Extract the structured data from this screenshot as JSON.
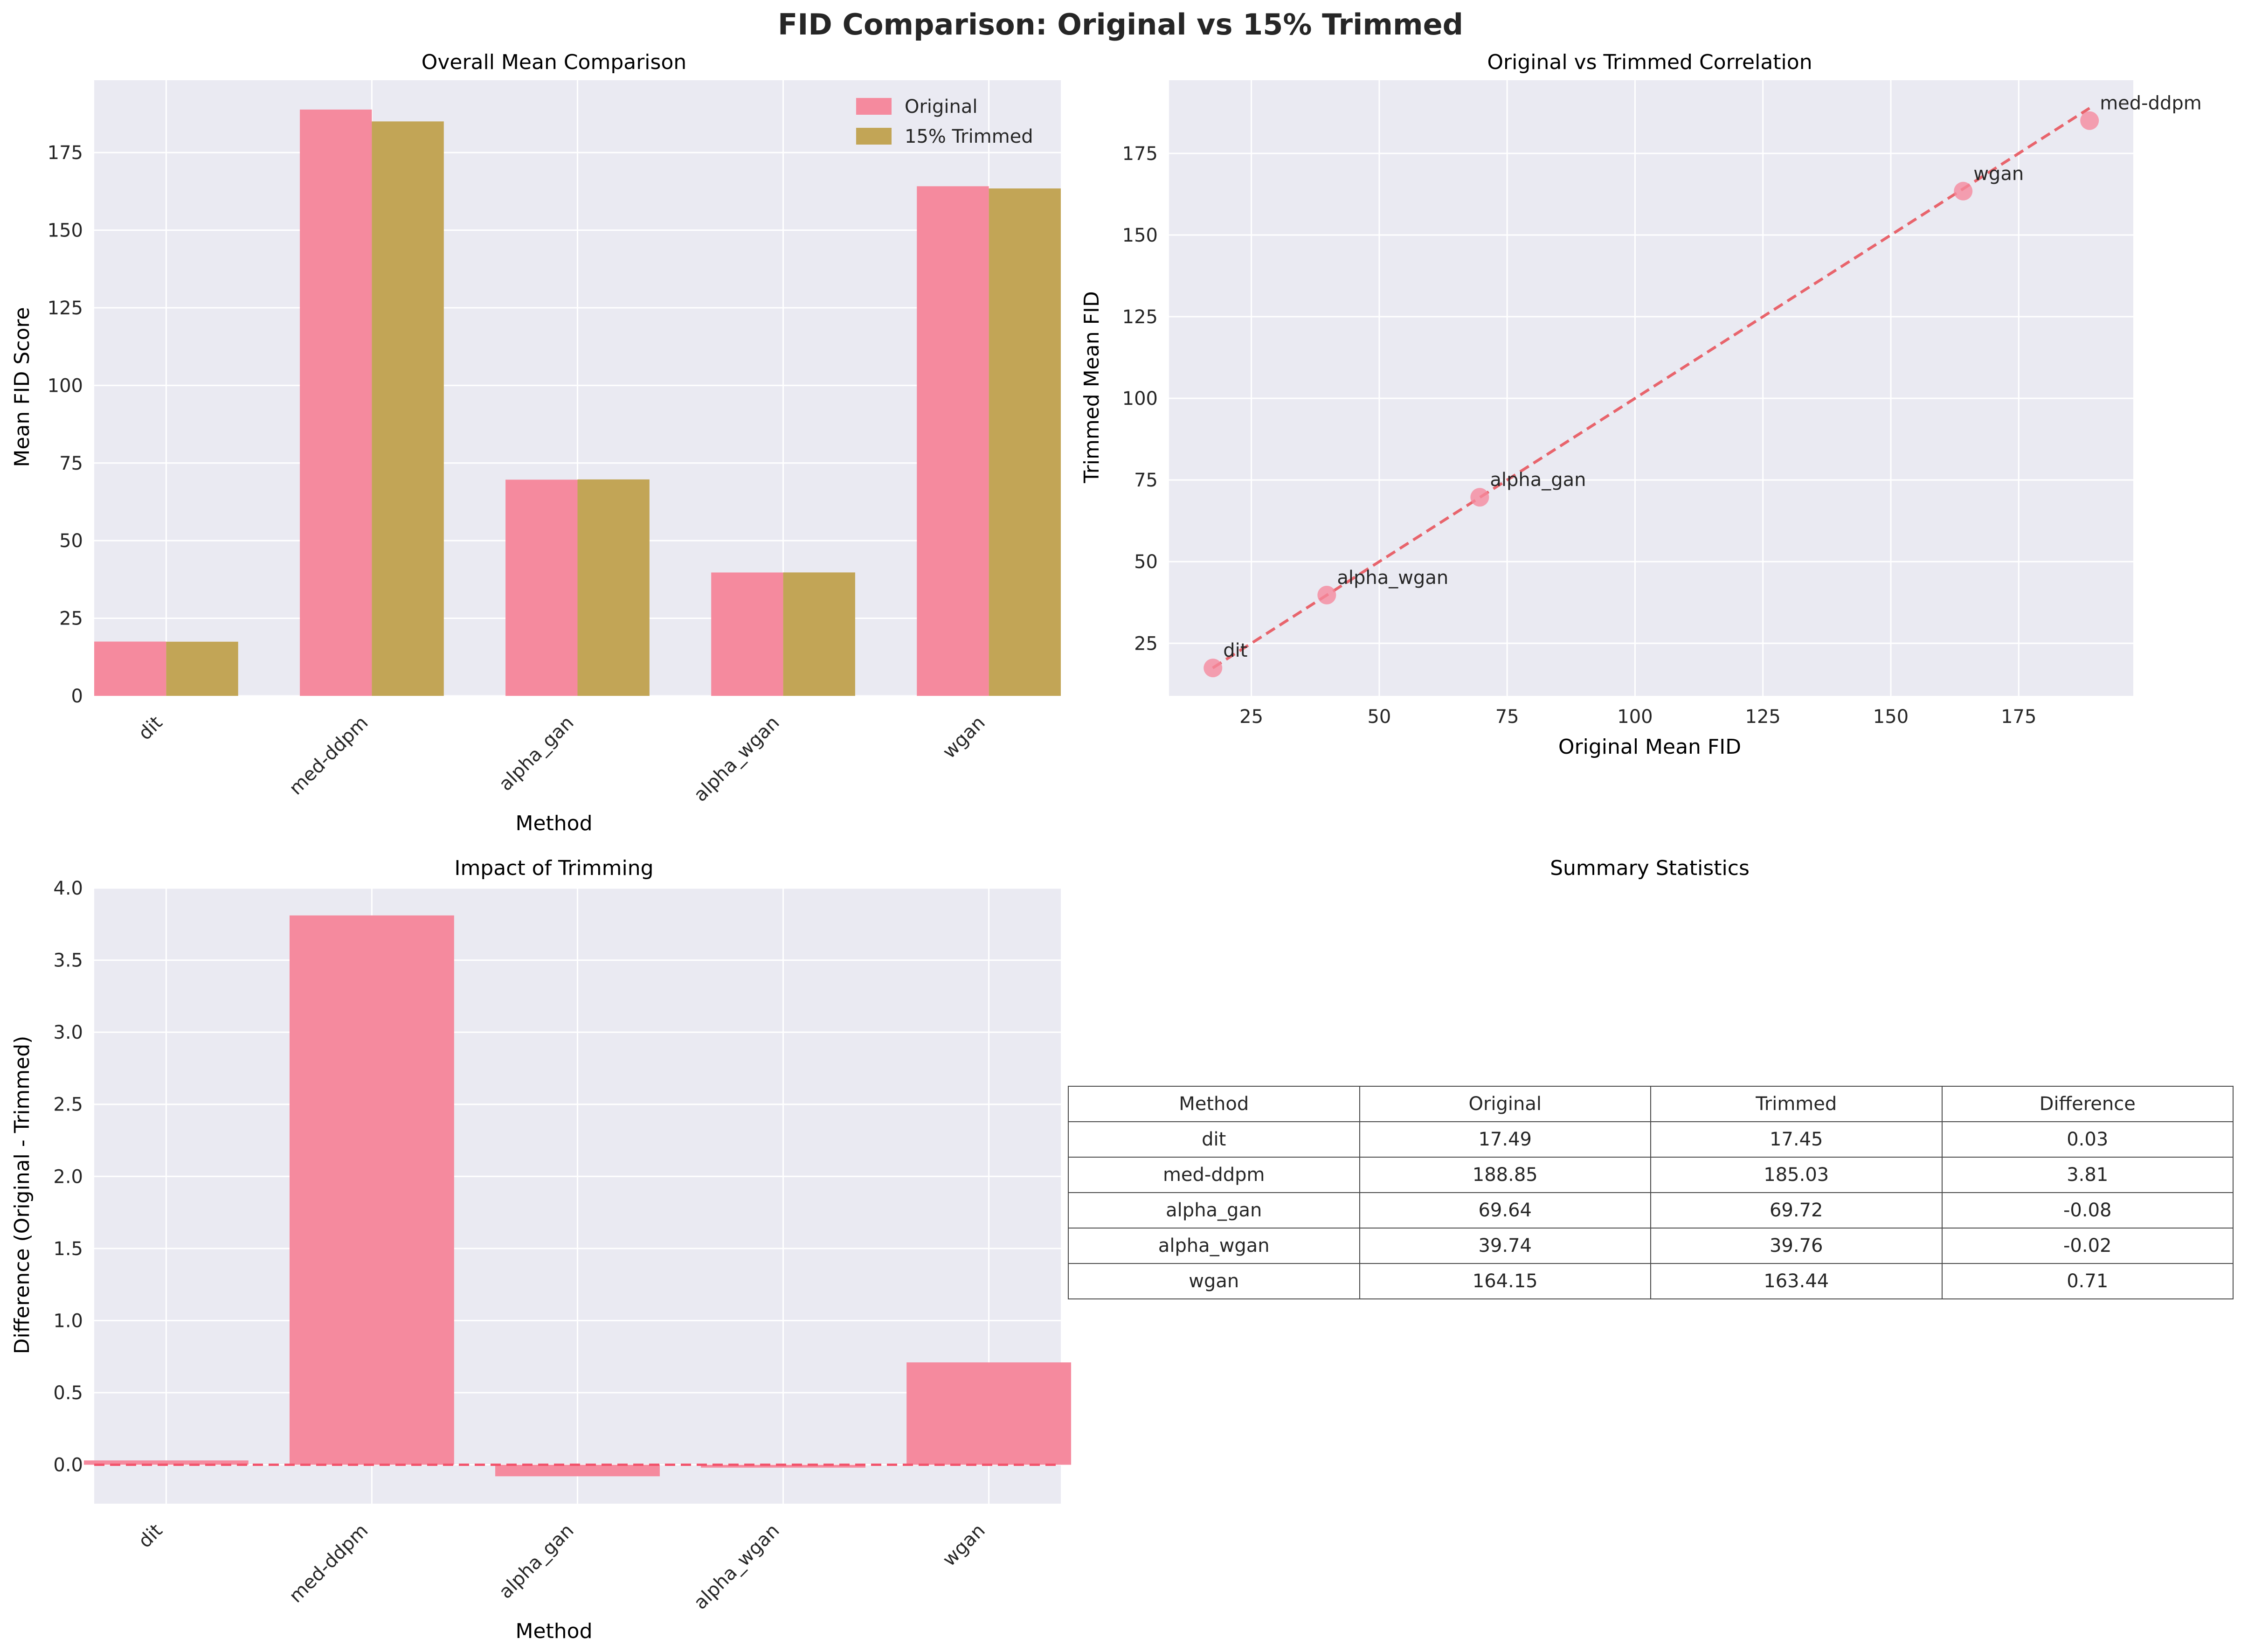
{
  "figure": {
    "title": "FID Comparison: Original vs 15% Trimmed"
  },
  "colors": {
    "original": "#f58a9e",
    "trimmed": "#c2a556",
    "line": "#e8646c",
    "point": "#f58a9e",
    "axes_bg": "#eaeaf2",
    "grid": "#ffffff",
    "zero_line": "#f2546c"
  },
  "chart_data": [
    {
      "type": "bar",
      "title": "Overall Mean Comparison",
      "xlabel": "Method",
      "ylabel": "Mean FID Score",
      "categories": [
        "dit",
        "med-ddpm",
        "alpha_gan",
        "alpha_wgan",
        "wgan"
      ],
      "series": [
        {
          "name": "Original",
          "values": [
            17.49,
            188.85,
            69.64,
            39.74,
            164.15
          ]
        },
        {
          "name": "15% Trimmed",
          "values": [
            17.45,
            185.03,
            69.72,
            39.76,
            163.44
          ]
        }
      ],
      "ylim": [
        0,
        198.3
      ],
      "yticks": [
        0,
        25,
        50,
        75,
        100,
        125,
        150,
        175
      ],
      "legend": "top-right",
      "grid": true
    },
    {
      "type": "scatter",
      "title": "Original vs Trimmed Correlation",
      "xlabel": "Original Mean FID",
      "ylabel": "Trimmed Mean FID",
      "points": [
        {
          "label": "dit",
          "x": 17.49,
          "y": 17.45
        },
        {
          "label": "alpha_wgan",
          "x": 39.74,
          "y": 39.76
        },
        {
          "label": "alpha_gan",
          "x": 69.64,
          "y": 69.72
        },
        {
          "label": "wgan",
          "x": 164.15,
          "y": 163.44
        },
        {
          "label": "med-ddpm",
          "x": 188.85,
          "y": 185.03
        }
      ],
      "reference_line": {
        "from": [
          17.45,
          17.45
        ],
        "to": [
          188.85,
          188.85
        ],
        "style": "dashed"
      },
      "xlim": [
        8.9,
        197.4
      ],
      "ylim": [
        8.9,
        197.4
      ],
      "xticks": [
        25,
        50,
        75,
        100,
        125,
        150,
        175
      ],
      "yticks": [
        25,
        50,
        75,
        100,
        125,
        150,
        175
      ],
      "grid": true
    },
    {
      "type": "bar",
      "title": "Impact of Trimming",
      "xlabel": "Method",
      "ylabel": "Difference (Original - Trimmed)",
      "categories": [
        "dit",
        "med-ddpm",
        "alpha_gan",
        "alpha_wgan",
        "wgan"
      ],
      "values": [
        0.03,
        3.81,
        -0.08,
        -0.02,
        0.71
      ],
      "ylim": [
        -0.27,
        4.0
      ],
      "yticks": [
        0.0,
        0.5,
        1.0,
        1.5,
        2.0,
        2.5,
        3.0,
        3.5,
        4.0
      ],
      "zero_line": "dashed",
      "grid": true
    },
    {
      "type": "table",
      "title": "Summary Statistics",
      "columns": [
        "Method",
        "Original",
        "Trimmed",
        "Difference"
      ],
      "rows": [
        [
          "dit",
          "17.49",
          "17.45",
          "0.03"
        ],
        [
          "med-ddpm",
          "188.85",
          "185.03",
          "3.81"
        ],
        [
          "alpha_gan",
          "69.64",
          "69.72",
          "-0.08"
        ],
        [
          "alpha_wgan",
          "39.74",
          "39.76",
          "-0.02"
        ],
        [
          "wgan",
          "164.15",
          "163.44",
          "0.71"
        ]
      ]
    }
  ]
}
